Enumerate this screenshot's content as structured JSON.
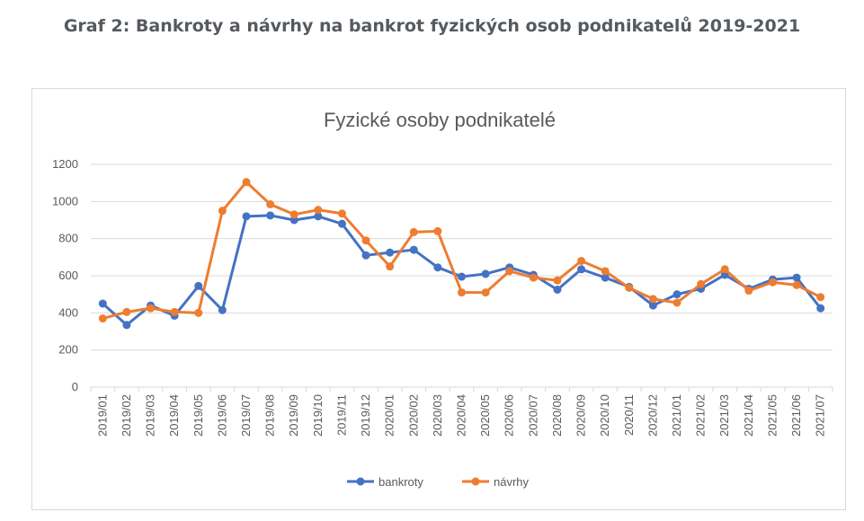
{
  "heading": "Graf 2: Bankroty a návrhy na bankrot fyzických osob podnikatelů 2019-2021",
  "colors": {
    "bankroty": "#4472C4",
    "navrhy": "#ED7D31",
    "grid": "#d9d9d9",
    "text": "#595959"
  },
  "chart_data": {
    "type": "line",
    "title": "Fyzické osoby podnikatelé",
    "xlabel": "",
    "ylabel": "",
    "ylim": [
      0,
      1200
    ],
    "yticks": [
      0,
      200,
      400,
      600,
      800,
      1000,
      1200
    ],
    "grid": true,
    "legend_position": "bottom",
    "categories": [
      "2019/01",
      "2019/02",
      "2019/03",
      "2019/04",
      "2019/05",
      "2019/06",
      "2019/07",
      "2019/08",
      "2019/09",
      "2019/10",
      "2019/11",
      "2019/12",
      "2020/01",
      "2020/02",
      "2020/03",
      "2020/04",
      "2020/05",
      "2020/06",
      "2020/07",
      "2020/08",
      "2020/09",
      "2020/10",
      "2020/11",
      "2020/12",
      "2021/01",
      "2021/02",
      "2021/03",
      "2021/04",
      "2021/05",
      "2021/06",
      "2021/07"
    ],
    "series": [
      {
        "name": "bankroty",
        "color": "#4472C4",
        "values": [
          450,
          335,
          440,
          385,
          545,
          415,
          920,
          925,
          900,
          920,
          880,
          710,
          725,
          740,
          645,
          595,
          610,
          645,
          605,
          525,
          635,
          590,
          540,
          440,
          500,
          530,
          605,
          530,
          580,
          590,
          425
        ]
      },
      {
        "name": "návrhy",
        "color": "#ED7D31",
        "values": [
          370,
          405,
          425,
          405,
          400,
          950,
          1105,
          985,
          930,
          955,
          935,
          790,
          650,
          835,
          840,
          510,
          510,
          625,
          590,
          575,
          680,
          625,
          535,
          475,
          455,
          555,
          635,
          520,
          565,
          550,
          485
        ]
      }
    ]
  }
}
